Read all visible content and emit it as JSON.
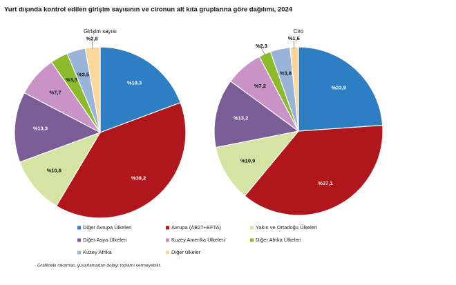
{
  "title": "Yurt dışında kontrol edilen girişim sayısının ve cironun alt kıta gruplarına göre dağılımı, 2024",
  "note": "Grafikteki rakamlar, yuvarlamadan dolayı toplamı vermeyebilir.",
  "chart_data": [
    {
      "type": "pie",
      "subtitle": "Girişim sayısı",
      "categories": [
        "Diğer Avrupa Ülkeleri",
        "Avrupa (AB27+EFTA)",
        "Yakın ve Ortadoğu Ülkeleri",
        "Diğer Asya Ülkeleri",
        "Kuzey Amerika Ülkeleri",
        "Diğer Afrika Ülkeleri",
        "Kuzey Afrika",
        "Diğer ülkeler"
      ],
      "values": [
        19.3,
        39.2,
        10.8,
        13.3,
        7.7,
        3.3,
        3.5,
        2.8
      ],
      "value_labels": [
        "%19,3",
        "%39,2",
        "%10,8",
        "%13,3",
        "%7,7",
        "%3,3",
        "%3,5",
        "%2,8"
      ],
      "colors": [
        "#2e7ec3",
        "#b0161b",
        "#d5e4a3",
        "#7a5c96",
        "#c993c8",
        "#8cba2a",
        "#9ab3d8",
        "#fbd79b"
      ]
    },
    {
      "type": "pie",
      "subtitle": "Ciro",
      "categories": [
        "Diğer Avrupa Ülkeleri",
        "Avrupa (AB27+EFTA)",
        "Yakın ve Ortadoğu Ülkeleri",
        "Diğer Asya Ülkeleri",
        "Kuzey Amerika Ülkeleri",
        "Diğer Afrika Ülkeleri",
        "Kuzey Afrika",
        "Diğer ülkeler"
      ],
      "values": [
        23.9,
        37.1,
        10.9,
        13.2,
        7.2,
        2.3,
        3.8,
        1.6
      ],
      "value_labels": [
        "%23,9",
        "%37,1",
        "%10,9",
        "%13,2",
        "%7,2",
        "%2,3",
        "%3,8",
        "%1,6"
      ],
      "colors": [
        "#2e7ec3",
        "#b0161b",
        "#d5e4a3",
        "#7a5c96",
        "#c993c8",
        "#8cba2a",
        "#9ab3d8",
        "#fbd79b"
      ]
    }
  ]
}
